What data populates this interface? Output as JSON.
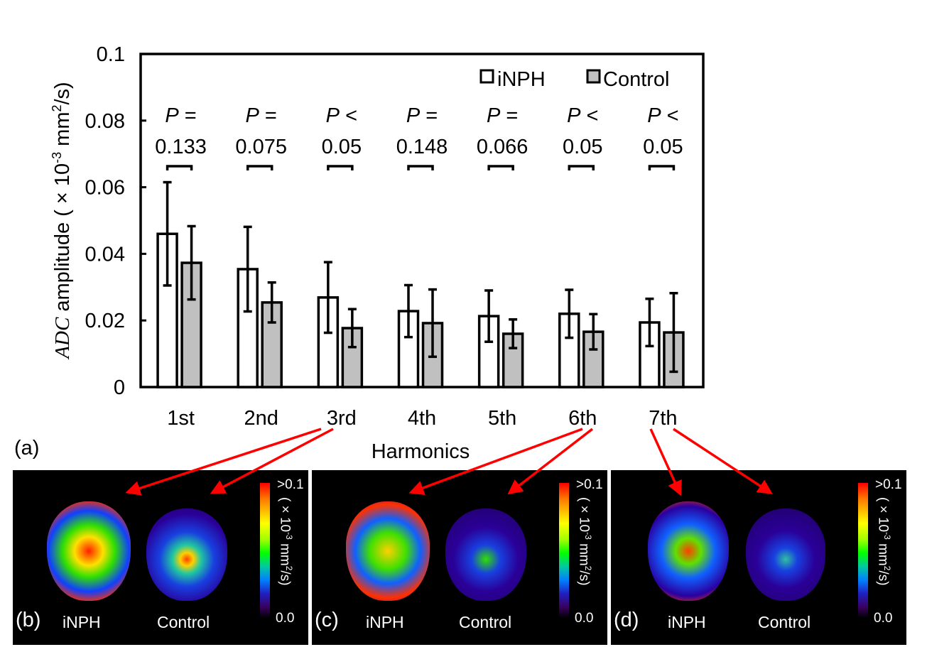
{
  "figure": {
    "panel_a_label": "(a)",
    "panels": [
      {
        "label": "(b)",
        "harmonic": "3rd",
        "left_label": "iNPH",
        "right_label": "Control"
      },
      {
        "label": "(c)",
        "harmonic": "6th",
        "left_label": "iNPH",
        "right_label": "Control"
      },
      {
        "label": "(d)",
        "harmonic": "7th",
        "left_label": "iNPH",
        "right_label": "Control"
      }
    ],
    "colorbar": {
      "max_label": ">0.1",
      "min_label": "0.0",
      "unit_prefix": "( × 10",
      "unit_exp": "-3",
      "unit_mid": " mm",
      "unit_exp2": "2",
      "unit_suffix": "/s)"
    },
    "colors": {
      "arrow": "#ff0000",
      "control_fill": "#c0c0c0",
      "inph_fill": "#ffffff",
      "panel_bg": "#000000"
    }
  },
  "chart_data": {
    "type": "bar",
    "title": "",
    "xlabel": "Harmonics",
    "ylabel_italic": "ADC",
    "ylabel_rest": " amplitude ( × 10",
    "ylabel_exp": "-3",
    "ylabel_unit": " mm",
    "ylabel_exp2": "2",
    "ylabel_end": "/s)",
    "ylim": [
      0,
      0.1
    ],
    "yticks": [
      0,
      0.02,
      0.04,
      0.06,
      0.08,
      0.1
    ],
    "ytick_labels": [
      "0",
      "0.02",
      "0.04",
      "0.06",
      "0.08",
      "0.1"
    ],
    "categories": [
      "1st",
      "2nd",
      "3rd",
      "4th",
      "5th",
      "6th",
      "7th"
    ],
    "series": [
      {
        "name": "iNPH",
        "fill": "#ffffff",
        "values": [
          0.046,
          0.0354,
          0.0269,
          0.0228,
          0.0213,
          0.022,
          0.0194
        ],
        "errors": [
          0.0155,
          0.0127,
          0.0106,
          0.0078,
          0.0077,
          0.0072,
          0.0071
        ]
      },
      {
        "name": "Control",
        "fill": "#c0c0c0",
        "values": [
          0.0373,
          0.0254,
          0.0177,
          0.0192,
          0.016,
          0.0166,
          0.0164
        ],
        "errors": [
          0.011,
          0.006,
          0.0057,
          0.0101,
          0.0043,
          0.0053,
          0.0118
        ]
      }
    ],
    "p_values": [
      {
        "symbol": "P",
        "op": "=",
        "value": "0.133"
      },
      {
        "symbol": "P",
        "op": "=",
        "value": "0.075"
      },
      {
        "symbol": "P",
        "op": "<",
        "value": "0.05"
      },
      {
        "symbol": "P",
        "op": "=",
        "value": "0.148"
      },
      {
        "symbol": "P",
        "op": "=",
        "value": "0.066"
      },
      {
        "symbol": "P",
        "op": "<",
        "value": "0.05"
      },
      {
        "symbol": "P",
        "op": "<",
        "value": "0.05"
      }
    ],
    "legend": {
      "position": "top-right",
      "entries": [
        "iNPH",
        "Control"
      ]
    },
    "grid": false
  }
}
